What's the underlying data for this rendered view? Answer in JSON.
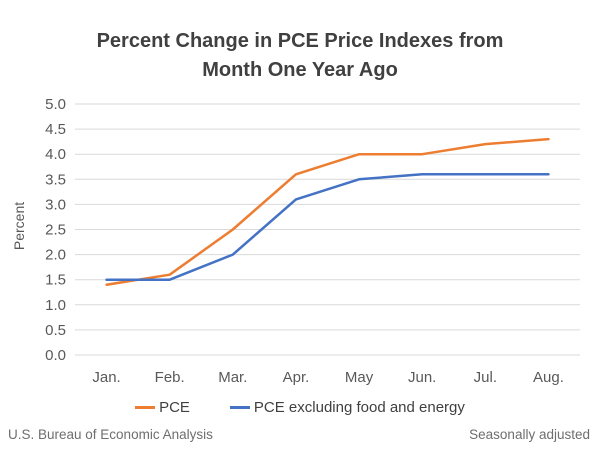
{
  "title": "Percent Change in PCE Price Indexes from Month One Year Ago",
  "chart_data": {
    "type": "line",
    "categories": [
      "Jan.",
      "Feb.",
      "Mar.",
      "Apr.",
      "May",
      "Jun.",
      "Jul.",
      "Aug."
    ],
    "series": [
      {
        "name": "PCE",
        "color": "#ED7D31",
        "values": [
          1.4,
          1.6,
          2.5,
          3.6,
          4.0,
          4.0,
          4.2,
          4.3
        ]
      },
      {
        "name": "PCE excluding food and energy",
        "color": "#4472C4",
        "values": [
          1.5,
          1.5,
          2.0,
          3.1,
          3.5,
          3.6,
          3.6,
          3.6
        ]
      }
    ],
    "xlabel": "",
    "ylabel": "Percent",
    "ylim": [
      0,
      5
    ],
    "ytick_step": 0.5,
    "grid": "horizontal",
    "legend_position": "bottom"
  },
  "footer": {
    "source": "U.S. Bureau of Economic Analysis",
    "note": "Seasonally adjusted"
  },
  "colors": {
    "title_text": "#404040",
    "axis_text": "#595959",
    "gridline": "#D9D9D9",
    "footer_text": "#6E6E6E",
    "background": "#FFFFFF"
  }
}
